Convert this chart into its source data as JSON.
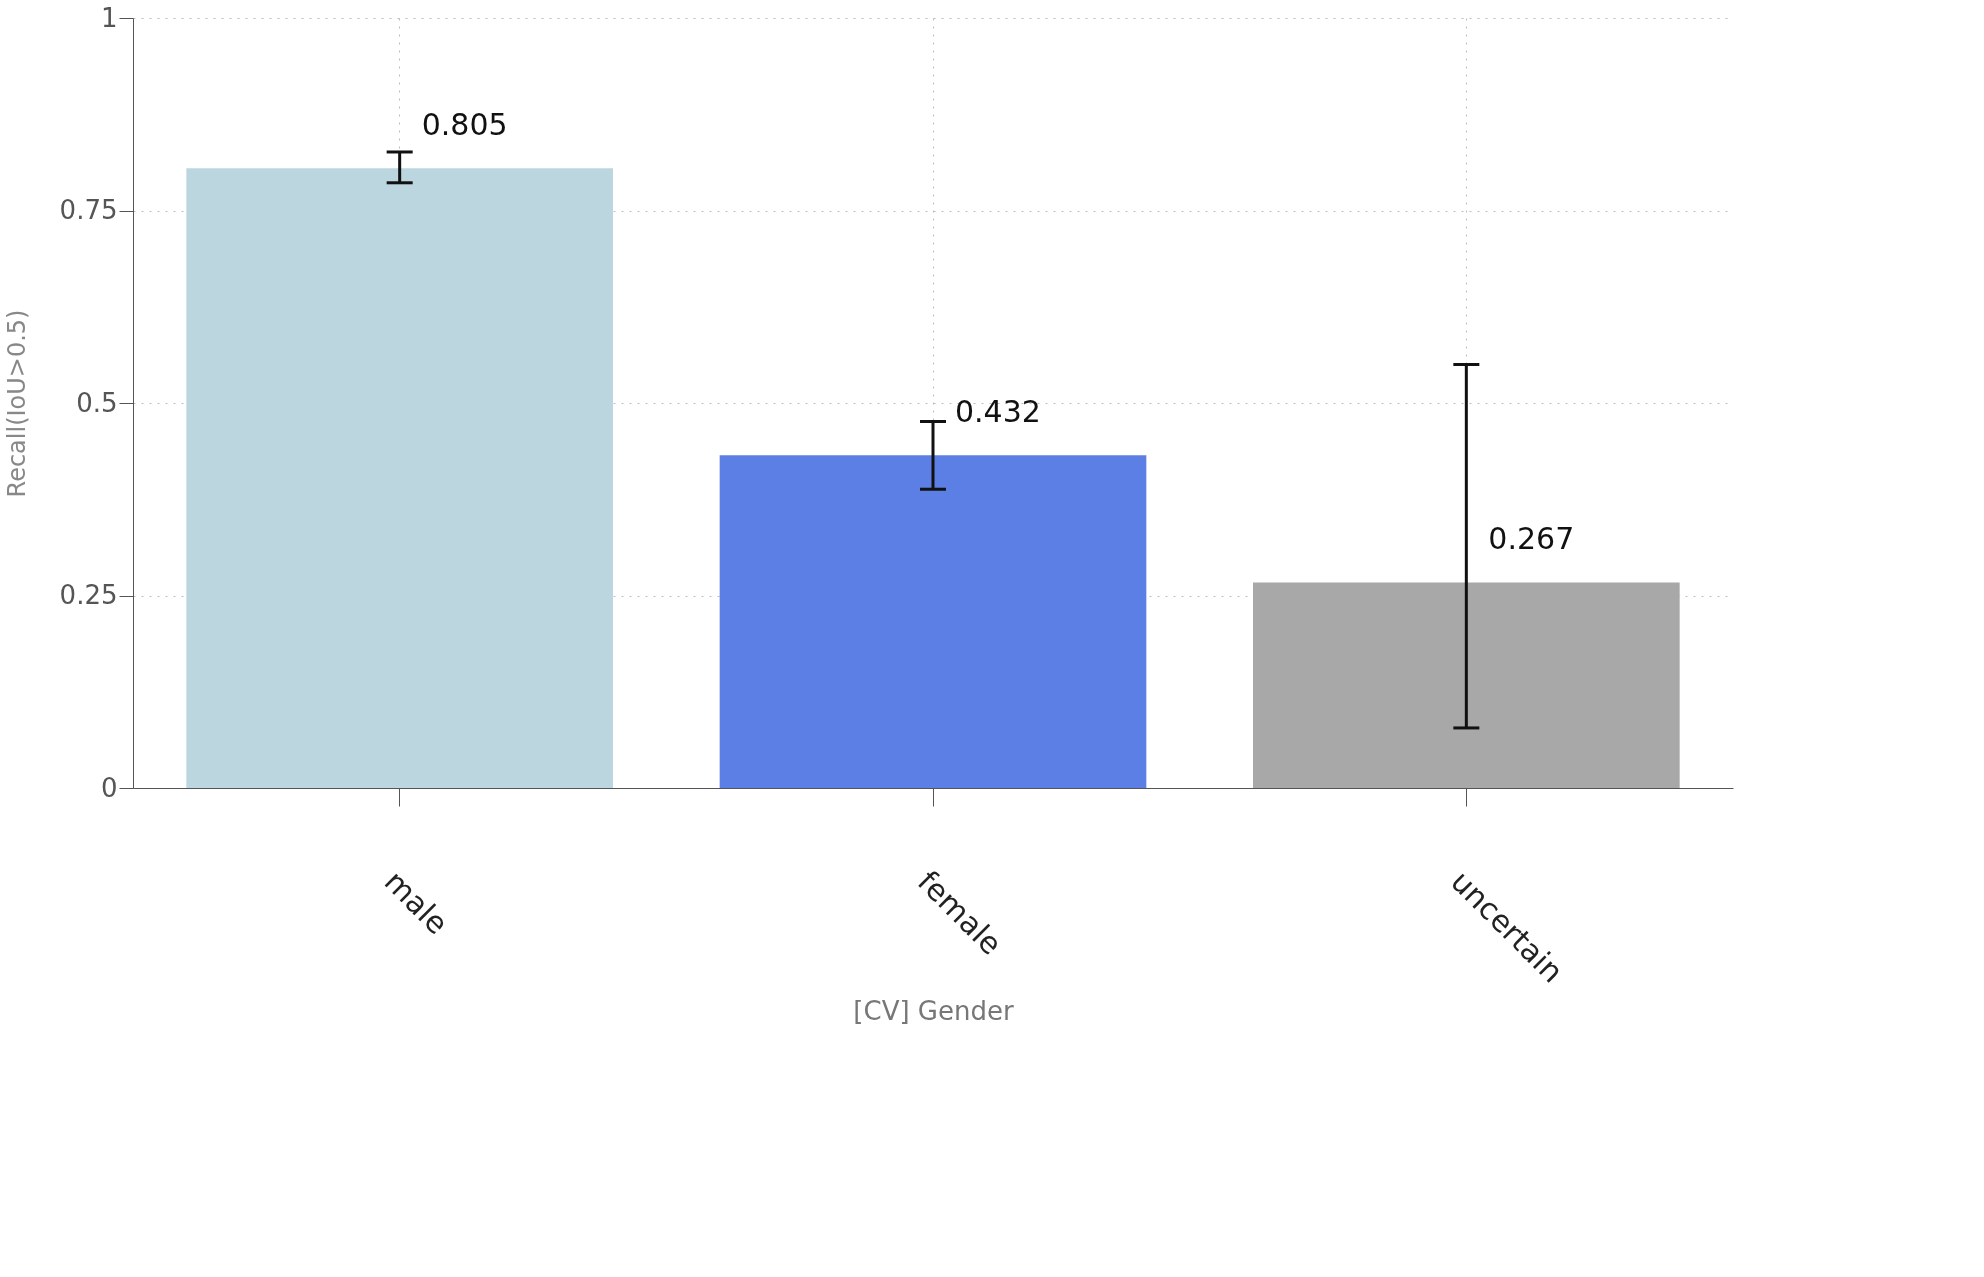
{
  "chart_data": {
    "type": "bar",
    "xlabel": "[CV] Gender",
    "ylabel": "Recall(IoU>0.5)",
    "categories": [
      "male",
      "female",
      "uncertain"
    ],
    "values": [
      0.805,
      0.432,
      0.267
    ],
    "colors": [
      "#bcd6e0",
      "#5b7fe5",
      "#a8a8a8"
    ],
    "errors": [
      [
        0.786,
        0.826
      ],
      [
        0.388,
        0.476
      ],
      [
        0.078,
        0.55
      ]
    ],
    "ylim": [
      0,
      1
    ],
    "yticks": [
      0,
      0.25,
      0.5,
      0.75,
      1
    ],
    "grid": true,
    "legend": false,
    "data_labels": true
  }
}
